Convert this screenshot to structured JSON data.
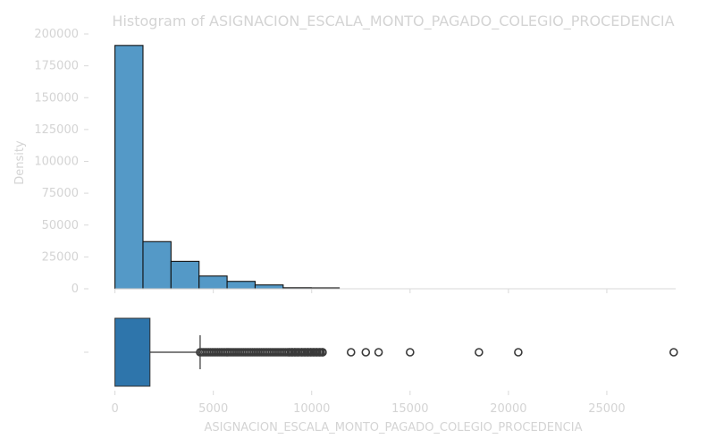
{
  "chart_data": {
    "type": "histogram",
    "title": "Histogram of ASIGNACION_ESCALA_MONTO_PAGADO_COLEGIO_PROCEDENCIA",
    "xlabel": "ASIGNACION_ESCALA_MONTO_PAGADO_COLEGIO_PROCEDENCIA",
    "ylabel": "Density",
    "xlim": [
      -1300,
      28500
    ],
    "ylim": [
      0,
      200000
    ],
    "x_ticks": [
      0,
      5000,
      10000,
      15000,
      20000,
      25000
    ],
    "y_ticks": [
      0,
      25000,
      50000,
      75000,
      100000,
      125000,
      150000,
      175000,
      200000
    ],
    "bins": [
      {
        "x0": 0,
        "x1": 1425,
        "value": 191000
      },
      {
        "x0": 1425,
        "x1": 2850,
        "value": 37000
      },
      {
        "x0": 2850,
        "x1": 4275,
        "value": 21500
      },
      {
        "x0": 4275,
        "x1": 5700,
        "value": 10000
      },
      {
        "x0": 5700,
        "x1": 7125,
        "value": 5800
      },
      {
        "x0": 7125,
        "x1": 8550,
        "value": 3000
      },
      {
        "x0": 8550,
        "x1": 9975,
        "value": 800
      },
      {
        "x0": 9975,
        "x1": 11400,
        "value": 700
      }
    ],
    "bar_color": "#5499c7",
    "boxplot": {
      "min": 0,
      "q1": 0,
      "median": 0,
      "q3": 1780,
      "whisker_high": 4330,
      "outliers_dense_range": [
        4330,
        10550
      ],
      "outliers": [
        8850,
        9000,
        9150,
        9300,
        9500,
        9650,
        9800,
        9950,
        10100,
        10250,
        10400,
        10550,
        12000,
        12750,
        13400,
        15000,
        18500,
        20500,
        28400
      ],
      "color": "#2e75ab"
    },
    "grid": false
  }
}
